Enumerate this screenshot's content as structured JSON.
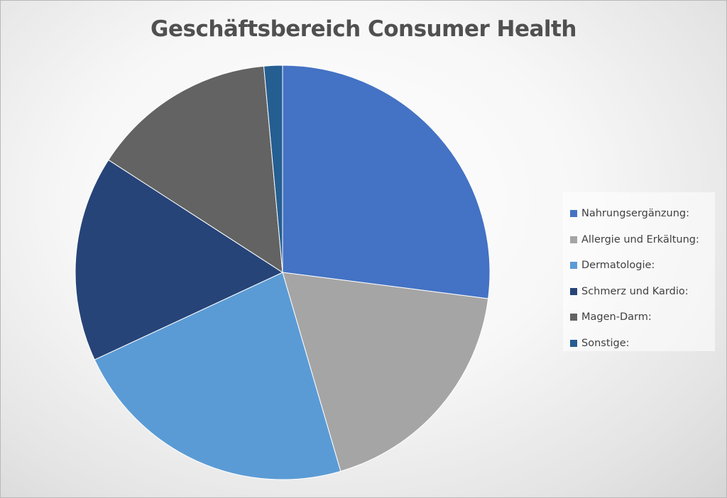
{
  "chart_data": {
    "type": "pie",
    "title": "Geschäftsbereich Consumer Health",
    "categories": [
      "Nahrungsergänzung:",
      "Allergie und Erkältung:",
      "Dermatologie:",
      "Schmerz und Kardio:",
      "Magen-Darm:",
      "Sonstige:"
    ],
    "values": [
      28.1,
      19.2,
      23.5,
      16.7,
      15.0,
      1.5
    ],
    "colors": [
      "#4472c4",
      "#a5a5a5",
      "#5b9bd5",
      "#264478",
      "#636363",
      "#255e91"
    ],
    "legend_position": "right"
  }
}
